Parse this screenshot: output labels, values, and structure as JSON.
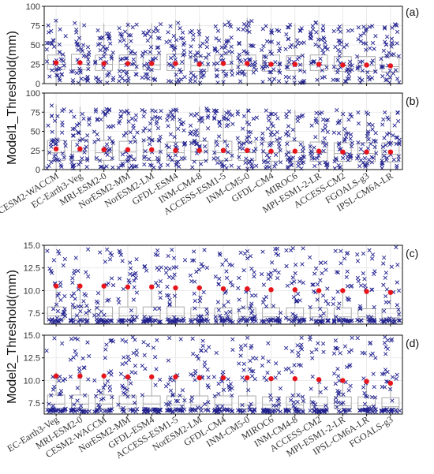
{
  "colors": {
    "points": "#1f1f8f",
    "mean": "#e8141b",
    "box": "#aaaaaa",
    "frame": "#111111",
    "grid": "#e5e5e5"
  },
  "chart_data": [
    {
      "panel": "(a)",
      "type": "box",
      "ylabel": "Model1_Threshold(mm)",
      "ylim": [
        0,
        100
      ],
      "yticks": [
        0,
        25,
        50,
        75,
        100
      ],
      "categories": [
        "CESM2-WACCM",
        "EC-Earth3-Veg",
        "MRI-ESM2-0",
        "NorESM2-MM",
        "NorESM2-LM",
        "GFDL-ESM4",
        "INM-CM4-8",
        "ACCESS-ESM1-5",
        "INM-CM5-0",
        "GFDL-CM4",
        "MIROC6",
        "MPI-ESM1-2-LR",
        "ACCESS-CM2",
        "FGOALS-g3",
        "IPSL-CM6A-LR"
      ],
      "box": [
        {
          "q1": 18,
          "median": 25,
          "q3": 37,
          "lower": 0,
          "upper": 82
        },
        {
          "q1": 18,
          "median": 25,
          "q3": 38,
          "lower": 0,
          "upper": 80
        },
        {
          "q1": 17,
          "median": 25,
          "q3": 37,
          "lower": 0,
          "upper": 78
        },
        {
          "q1": 17,
          "median": 25,
          "q3": 37,
          "lower": 0,
          "upper": 80
        },
        {
          "q1": 18,
          "median": 24,
          "q3": 37,
          "lower": 0,
          "upper": 78
        },
        {
          "q1": 17,
          "median": 25,
          "q3": 38,
          "lower": 0,
          "upper": 82
        },
        {
          "q1": 16,
          "median": 23,
          "q3": 35,
          "lower": 0,
          "upper": 78
        },
        {
          "q1": 17,
          "median": 25,
          "q3": 37,
          "lower": 0,
          "upper": 80
        },
        {
          "q1": 17,
          "median": 24,
          "q3": 37,
          "lower": 0,
          "upper": 85
        },
        {
          "q1": 16,
          "median": 23,
          "q3": 37,
          "lower": 0,
          "upper": 78
        },
        {
          "q1": 17,
          "median": 24,
          "q3": 36,
          "lower": 0,
          "upper": 78
        },
        {
          "q1": 17,
          "median": 24,
          "q3": 37,
          "lower": 0,
          "upper": 80
        },
        {
          "q1": 16,
          "median": 23,
          "q3": 35,
          "lower": 0,
          "upper": 78
        },
        {
          "q1": 16,
          "median": 23,
          "q3": 35,
          "lower": 0,
          "upper": 78
        },
        {
          "q1": 15,
          "median": 22,
          "q3": 35,
          "lower": 0,
          "upper": 78
        }
      ],
      "mean": [
        27,
        27,
        26,
        26,
        26,
        26,
        25,
        26,
        26,
        25,
        25,
        25,
        24,
        24,
        23
      ]
    },
    {
      "panel": "(b)",
      "type": "box",
      "ylabel": "Model1_Threshold(mm)",
      "ylim": [
        0,
        100
      ],
      "yticks": [
        0,
        25,
        50,
        75,
        100
      ],
      "categories": [
        "CESM2-WACCM",
        "EC-Earth3-Veg",
        "MRI-ESM2-0",
        "NorESM2-MM",
        "NorESM2-LM",
        "GFDL-ESM4",
        "INM-CM4-8",
        "ACCESS-ESM1-5",
        "INM-CM5-0",
        "GFDL-CM4",
        "MIROC6",
        "MPI-ESM1-2-LR",
        "ACCESS-CM2",
        "FGOALS-g3",
        "IPSL-CM6A-LR"
      ],
      "box": [
        {
          "q1": 12,
          "median": 22,
          "q3": 38,
          "lower": 0,
          "upper": 85
        },
        {
          "q1": 12,
          "median": 23,
          "q3": 38,
          "lower": 0,
          "upper": 82
        },
        {
          "q1": 12,
          "median": 22,
          "q3": 38,
          "lower": 0,
          "upper": 80
        },
        {
          "q1": 12,
          "median": 23,
          "q3": 37,
          "lower": 0,
          "upper": 80
        },
        {
          "q1": 12,
          "median": 23,
          "q3": 38,
          "lower": 0,
          "upper": 80
        },
        {
          "q1": 12,
          "median": 22,
          "q3": 36,
          "lower": 0,
          "upper": 80
        },
        {
          "q1": 12,
          "median": 23,
          "q3": 37,
          "lower": 0,
          "upper": 82
        },
        {
          "q1": 12,
          "median": 22,
          "q3": 37,
          "lower": 0,
          "upper": 80
        },
        {
          "q1": 12,
          "median": 22,
          "q3": 36,
          "lower": 0,
          "upper": 80
        },
        {
          "q1": 11,
          "median": 22,
          "q3": 36,
          "lower": 0,
          "upper": 78
        },
        {
          "q1": 11,
          "median": 22,
          "q3": 37,
          "lower": 0,
          "upper": 78
        },
        {
          "q1": 11,
          "median": 22,
          "q3": 36,
          "lower": 0,
          "upper": 78
        },
        {
          "q1": 11,
          "median": 21,
          "q3": 35,
          "lower": 0,
          "upper": 78
        },
        {
          "q1": 10,
          "median": 21,
          "q3": 35,
          "lower": 0,
          "upper": 75
        },
        {
          "q1": 10,
          "median": 20,
          "q3": 35,
          "lower": 0,
          "upper": 75
        }
      ],
      "mean": [
        27,
        27,
        26,
        26,
        26,
        25,
        25,
        25,
        25,
        24,
        24,
        24,
        23,
        23,
        23
      ]
    },
    {
      "panel": "(c)",
      "type": "box",
      "ylabel": "Model2_Threshold(mm)",
      "ylim": [
        6.3,
        15
      ],
      "yticks": [
        7.5,
        10.0,
        12.5,
        15.0
      ],
      "ytick_labels": [
        "7.5",
        "10.0",
        "12.5",
        "15.0"
      ],
      "categories": [
        "EC-Earth3-Veg",
        "MRI-ESM2-0",
        "CESM2-WACCM",
        "NorESM2-MM",
        "GFDL-ESM4",
        "ACCESS-ESM1-5",
        "NorESM2-LM",
        "GFDL-CM4",
        "INM-CM5-0",
        "MIROC6",
        "INM-CM4-8",
        "ACCESS-CM2",
        "MPI-ESM1-2-LR",
        "IPSL-CM6A-LR",
        "FGOALS-g3"
      ],
      "box": [
        {
          "q1": 6.8,
          "median": 7.2,
          "q3": 8.2,
          "lower": 6.6,
          "upper": 10.5
        },
        {
          "q1": 6.8,
          "median": 7.2,
          "q3": 8.2,
          "lower": 6.6,
          "upper": 10.5
        },
        {
          "q1": 6.8,
          "median": 7.2,
          "q3": 8.2,
          "lower": 6.6,
          "upper": 10.5
        },
        {
          "q1": 6.8,
          "median": 7.2,
          "q3": 8.2,
          "lower": 6.6,
          "upper": 10.4
        },
        {
          "q1": 6.8,
          "median": 7.2,
          "q3": 8.2,
          "lower": 6.6,
          "upper": 10.4
        },
        {
          "q1": 6.8,
          "median": 7.2,
          "q3": 8.2,
          "lower": 6.6,
          "upper": 10.3
        },
        {
          "q1": 6.8,
          "median": 7.2,
          "q3": 8.1,
          "lower": 6.6,
          "upper": 10.3
        },
        {
          "q1": 6.8,
          "median": 7.1,
          "q3": 8.1,
          "lower": 6.6,
          "upper": 10.2
        },
        {
          "q1": 6.8,
          "median": 7.1,
          "q3": 8.1,
          "lower": 6.6,
          "upper": 10.2
        },
        {
          "q1": 6.8,
          "median": 7.1,
          "q3": 8.1,
          "lower": 6.6,
          "upper": 10.1
        },
        {
          "q1": 6.8,
          "median": 7.1,
          "q3": 8.1,
          "lower": 6.6,
          "upper": 10.1
        },
        {
          "q1": 6.8,
          "median": 7.1,
          "q3": 8.1,
          "lower": 6.6,
          "upper": 10.0
        },
        {
          "q1": 6.8,
          "median": 7.1,
          "q3": 8.1,
          "lower": 6.6,
          "upper": 10.0
        },
        {
          "q1": 6.8,
          "median": 7.1,
          "q3": 8.0,
          "lower": 6.6,
          "upper": 9.9
        },
        {
          "q1": 6.8,
          "median": 7.0,
          "q3": 8.0,
          "lower": 6.6,
          "upper": 9.8
        }
      ],
      "mean": [
        10.5,
        10.5,
        10.5,
        10.4,
        10.4,
        10.3,
        10.3,
        10.2,
        10.2,
        10.1,
        10.1,
        10.0,
        10.0,
        9.9,
        9.8
      ]
    },
    {
      "panel": "(d)",
      "type": "box",
      "ylabel": "Model2_Threshold(mm)",
      "ylim": [
        6.3,
        15
      ],
      "yticks": [
        7.5,
        10.0,
        12.5,
        15.0
      ],
      "ytick_labels": [
        "7.5",
        "10.0",
        "12.5",
        "15.0"
      ],
      "categories": [
        "EC-Earth3-Veg",
        "MRI-ESM2-0",
        "CESM2-WACCM",
        "NorESM2-MM",
        "GFDL-ESM4",
        "ACCESS-ESM1-5",
        "NorESM2-LM",
        "GFDL-CM4",
        "INM-CM5-0",
        "MIROC6",
        "INM-CM4-8",
        "ACCESS-CM2",
        "MPI-ESM1-2-LR",
        "IPSL-CM6A-LR",
        "FGOALS-g3"
      ],
      "box": [
        {
          "q1": 6.9,
          "median": 7.4,
          "q3": 8.4,
          "lower": 6.6,
          "upper": 10.9
        },
        {
          "q1": 6.9,
          "median": 7.4,
          "q3": 8.4,
          "lower": 6.6,
          "upper": 10.8
        },
        {
          "q1": 6.9,
          "median": 7.4,
          "q3": 8.4,
          "lower": 6.6,
          "upper": 10.8
        },
        {
          "q1": 6.9,
          "median": 7.4,
          "q3": 8.3,
          "lower": 6.6,
          "upper": 10.7
        },
        {
          "q1": 6.9,
          "median": 7.4,
          "q3": 8.3,
          "lower": 6.6,
          "upper": 10.7
        },
        {
          "q1": 6.9,
          "median": 7.3,
          "q3": 8.3,
          "lower": 6.6,
          "upper": 10.6
        },
        {
          "q1": 6.9,
          "median": 7.3,
          "q3": 8.3,
          "lower": 6.6,
          "upper": 10.6
        },
        {
          "q1": 6.9,
          "median": 7.3,
          "q3": 8.3,
          "lower": 6.6,
          "upper": 10.5
        },
        {
          "q1": 6.9,
          "median": 7.3,
          "q3": 8.3,
          "lower": 6.6,
          "upper": 10.5
        },
        {
          "q1": 6.9,
          "median": 7.3,
          "q3": 8.2,
          "lower": 6.6,
          "upper": 10.4
        },
        {
          "q1": 6.9,
          "median": 7.3,
          "q3": 8.2,
          "lower": 6.6,
          "upper": 10.4
        },
        {
          "q1": 6.9,
          "median": 7.2,
          "q3": 8.2,
          "lower": 6.6,
          "upper": 10.3
        },
        {
          "q1": 6.9,
          "median": 7.2,
          "q3": 8.2,
          "lower": 6.6,
          "upper": 10.2
        },
        {
          "q1": 6.9,
          "median": 7.2,
          "q3": 8.2,
          "lower": 6.6,
          "upper": 10.1
        },
        {
          "q1": 6.9,
          "median": 7.1,
          "q3": 8.1,
          "lower": 6.6,
          "upper": 10.0
        }
      ],
      "mean": [
        10.5,
        10.5,
        10.5,
        10.4,
        10.4,
        10.4,
        10.3,
        10.3,
        10.3,
        10.2,
        10.2,
        10.1,
        10.0,
        9.9,
        9.7
      ]
    }
  ]
}
